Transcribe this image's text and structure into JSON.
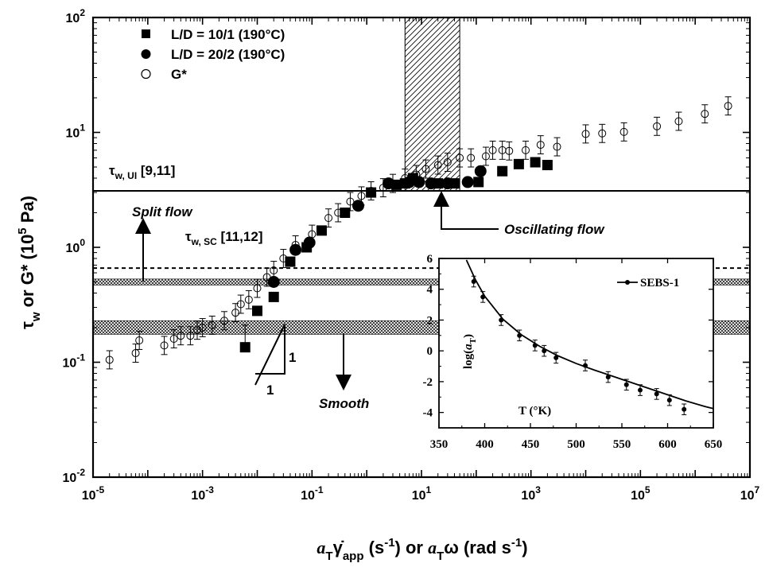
{
  "chart_data": [
    {
      "type": "scatter",
      "title": "",
      "xlabel": "aTγ̇app (s-1) or aTω (rad s-1)",
      "ylabel": "τw or G* (105 Pa)",
      "xscale": "log",
      "yscale": "log",
      "xlim": [
        1e-05,
        10000000
      ],
      "ylim": [
        0.01,
        100
      ],
      "xticks": [
        "10-5",
        "10-3",
        "10-1",
        "101",
        "103",
        "105",
        "107"
      ],
      "yticks": [
        "10-2",
        "10-1",
        "100",
        "101",
        "102"
      ],
      "legend_position": "top-left",
      "series": [
        {
          "name": "L/D = 10/1 (190°C)",
          "marker": "filled-square",
          "points": [
            [
              0.006,
              0.135
            ],
            [
              0.01,
              0.28
            ],
            [
              0.02,
              0.37
            ],
            [
              0.04,
              0.75
            ],
            [
              0.08,
              1.0
            ],
            [
              0.15,
              1.4
            ],
            [
              0.4,
              2.0
            ],
            [
              1.2,
              3.0
            ],
            [
              3.5,
              3.5
            ],
            [
              5,
              3.6
            ],
            [
              7,
              4.0
            ],
            [
              20,
              3.6
            ],
            [
              40,
              3.6
            ],
            [
              110,
              3.7
            ],
            [
              300,
              4.6
            ],
            [
              600,
              5.3
            ],
            [
              1200,
              5.5
            ],
            [
              2000,
              5.2
            ]
          ]
        },
        {
          "name": "L/D = 20/2 (190°C)",
          "marker": "filled-circle",
          "points": [
            [
              0.02,
              0.5
            ],
            [
              0.05,
              0.95
            ],
            [
              0.09,
              1.1
            ],
            [
              0.7,
              2.3
            ],
            [
              2.5,
              3.6
            ],
            [
              6,
              3.7
            ],
            [
              9,
              3.7
            ],
            [
              15,
              3.6
            ],
            [
              30,
              3.6
            ],
            [
              70,
              3.7
            ],
            [
              120,
              4.6
            ]
          ]
        },
        {
          "name": "G*",
          "marker": "open-circle",
          "points": [
            [
              2e-05,
              0.105
            ],
            [
              6e-05,
              0.12
            ],
            [
              7e-05,
              0.155
            ],
            [
              0.0002,
              0.14
            ],
            [
              0.0003,
              0.16
            ],
            [
              0.0004,
              0.17
            ],
            [
              0.0006,
              0.17
            ],
            [
              0.0008,
              0.19
            ],
            [
              0.001,
              0.2
            ],
            [
              0.0015,
              0.21
            ],
            [
              0.0025,
              0.23
            ],
            [
              0.004,
              0.27
            ],
            [
              0.005,
              0.32
            ],
            [
              0.007,
              0.35
            ],
            [
              0.01,
              0.44
            ],
            [
              0.015,
              0.55
            ],
            [
              0.02,
              0.63
            ],
            [
              0.03,
              0.8
            ],
            [
              0.05,
              1.05
            ],
            [
              0.1,
              1.3
            ],
            [
              0.2,
              1.8
            ],
            [
              0.3,
              2.0
            ],
            [
              0.5,
              2.5
            ],
            [
              0.8,
              2.8
            ],
            [
              1.2,
              3.1
            ],
            [
              2,
              3.3
            ],
            [
              3,
              3.6
            ],
            [
              5,
              4.0
            ],
            [
              8,
              4.3
            ],
            [
              12,
              4.8
            ],
            [
              20,
              5.2
            ],
            [
              30,
              5.5
            ],
            [
              50,
              6.0
            ],
            [
              80,
              6.0
            ],
            [
              150,
              6.2
            ],
            [
              200,
              7.0
            ],
            [
              300,
              7.0
            ],
            [
              400,
              6.9
            ],
            [
              800,
              7.0
            ],
            [
              1500,
              7.8
            ],
            [
              3000,
              7.5
            ],
            [
              10000,
              9.7
            ],
            [
              20000,
              9.8
            ],
            [
              50000,
              10.1
            ],
            [
              200000,
              11.3
            ],
            [
              500000,
              12.5
            ],
            [
              1500000,
              14.5
            ],
            [
              4000000,
              17.0
            ]
          ]
        }
      ],
      "reference_lines": [
        {
          "label": "τw, UI [9,11]",
          "y": 3.1,
          "style": "solid"
        },
        {
          "label": "τw, SC [11,12]",
          "y": 0.66,
          "style": "dashed"
        }
      ],
      "bands": [
        {
          "kind": "horizontal",
          "y_range": [
            0.47,
            0.53
          ],
          "fill": "cross-hatch"
        },
        {
          "kind": "horizontal",
          "y_range": [
            0.175,
            0.23
          ],
          "fill": "cross-hatch"
        },
        {
          "kind": "vertical",
          "x_range": [
            5,
            50
          ],
          "fill": "diagonal-hatch"
        }
      ],
      "annotations": [
        "Split flow",
        "Oscillating flow",
        "Smooth",
        "1",
        "1"
      ]
    },
    {
      "type": "line",
      "title": "",
      "xlabel": "T (°K)",
      "ylabel": "log(aT)",
      "xlim": [
        350,
        650
      ],
      "ylim": [
        -5,
        6
      ],
      "xticks": [
        "350",
        "400",
        "450",
        "500",
        "550",
        "600",
        "650"
      ],
      "yticks": [
        "6",
        "4",
        "2",
        "0",
        "-2",
        "-4"
      ],
      "legend_position": "top-right",
      "series": [
        {
          "name": "SEBS-1",
          "marker": "filled-dot",
          "points": [
            [
              388,
              4.5
            ],
            [
              398,
              3.5
            ],
            [
              418,
              2.0
            ],
            [
              438,
              1.0
            ],
            [
              455,
              0.35
            ],
            [
              465,
              0.0
            ],
            [
              478,
              -0.45
            ],
            [
              510,
              -0.95
            ],
            [
              535,
              -1.7
            ],
            [
              555,
              -2.2
            ],
            [
              570,
              -2.55
            ],
            [
              588,
              -2.8
            ],
            [
              602,
              -3.2
            ],
            [
              618,
              -3.8
            ]
          ],
          "fit": [
            [
              380,
              5.9
            ],
            [
              390,
              4.6
            ],
            [
              400,
              3.55
            ],
            [
              420,
              2.05
            ],
            [
              440,
              1.05
            ],
            [
              460,
              0.3
            ],
            [
              480,
              -0.32
            ],
            [
              500,
              -0.82
            ],
            [
              520,
              -1.25
            ],
            [
              540,
              -1.65
            ],
            [
              560,
              -2.05
            ],
            [
              580,
              -2.45
            ],
            [
              600,
              -2.85
            ],
            [
              620,
              -3.25
            ],
            [
              640,
              -3.6
            ],
            [
              650,
              -3.75
            ]
          ]
        }
      ]
    }
  ],
  "text": {
    "y_axis_label": "τ",
    "y_axis_label_sub": "w",
    "y_axis_label_rest": " or G* (10",
    "y_axis_label_sup": "5",
    "y_axis_label_end": " Pa)",
    "x_axis_a1": "a",
    "x_axis_T1": "T",
    "x_axis_gamma": "γ̇",
    "x_axis_app": "app",
    "x_axis_mid": " (s",
    "x_axis_sup1": "-1",
    "x_axis_or": ") or ",
    "x_axis_a2": "a",
    "x_axis_T2": "T",
    "x_axis_omega": "ω (rad s",
    "x_axis_sup2": "-1",
    "x_axis_end": ")",
    "tau_ui_main": "τ",
    "tau_ui_sub": "w, UI",
    "tau_ui_ref": " [9,11]",
    "tau_sc_main": "τ",
    "tau_sc_sub": "w, SC",
    "tau_sc_ref": " [11,12]",
    "split_flow": "Split flow",
    "oscillating_flow": "Oscillating flow",
    "smooth": "Smooth",
    "slope_1a": "1",
    "slope_1b": "1",
    "inset_xlabel": "T (°K)",
    "inset_ylabel_log": "log(",
    "inset_ylabel_a": "a",
    "inset_ylabel_T": "T",
    "inset_ylabel_close": ")"
  }
}
